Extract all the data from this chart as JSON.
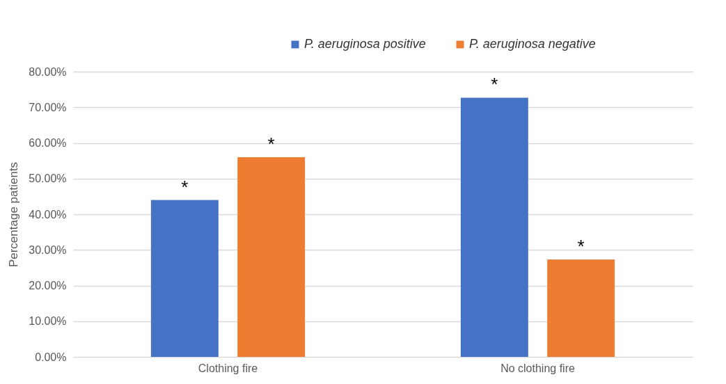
{
  "chart_data": {
    "type": "bar",
    "ylabel": "Percentage patients",
    "categories": [
      "Clothing fire",
      "No clothing fire"
    ],
    "series": [
      {
        "name": "P. aeruginosa positive",
        "color": "#4472c4",
        "values": [
          44.0,
          72.7
        ]
      },
      {
        "name": "P. aeruginosa negative",
        "color": "#ed7d31",
        "values": [
          56.0,
          27.3
        ]
      }
    ],
    "ylim": [
      0,
      80
    ],
    "yticks": [
      {
        "value": 0,
        "label": "0.00%"
      },
      {
        "value": 10,
        "label": "10.00%"
      },
      {
        "value": 20,
        "label": "20.00%"
      },
      {
        "value": 30,
        "label": "30.00%"
      },
      {
        "value": 40,
        "label": "40.00%"
      },
      {
        "value": 50,
        "label": "50.00%"
      },
      {
        "value": 60,
        "label": "60.00%"
      },
      {
        "value": 70,
        "label": "70.00%"
      },
      {
        "value": 80,
        "label": "80.00%"
      }
    ],
    "annotations": [
      "*",
      "*",
      "*",
      "*"
    ],
    "grid": "y",
    "legend": "top right"
  }
}
